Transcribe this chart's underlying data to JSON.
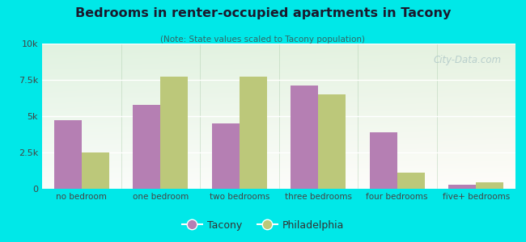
{
  "title": "Bedrooms in renter-occupied apartments in Tacony",
  "subtitle": "(Note: State values scaled to Tacony population)",
  "categories": [
    "no bedroom",
    "one bedroom",
    "two bedrooms",
    "three bedrooms",
    "four bedrooms",
    "five+ bedrooms"
  ],
  "tacony_values": [
    4700,
    5800,
    4500,
    7100,
    3900,
    300
  ],
  "philadelphia_values": [
    2500,
    7700,
    7700,
    6500,
    1100,
    450
  ],
  "tacony_color": "#b57fb3",
  "philadelphia_color": "#bcc87a",
  "background_outer": "#00e8e8",
  "ylim": [
    0,
    10000
  ],
  "yticks": [
    0,
    2500,
    5000,
    7500,
    10000
  ],
  "ytick_labels": [
    "0",
    "2.5k",
    "5k",
    "7.5k",
    "10k"
  ],
  "bar_width": 0.35,
  "watermark": "City-Data.com",
  "title_color": "#1a1a2e",
  "subtitle_color": "#336666",
  "tick_color": "#444444"
}
